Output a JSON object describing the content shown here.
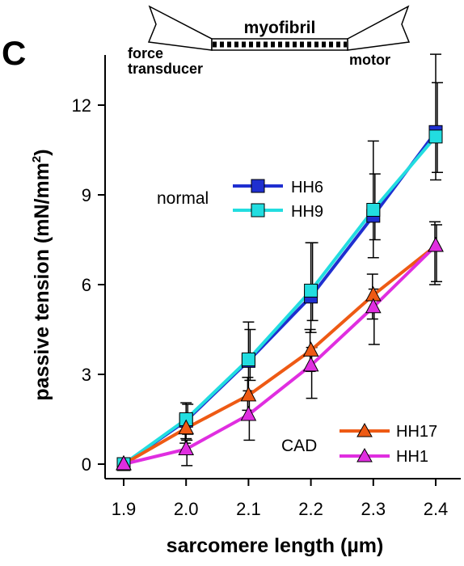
{
  "panel_letter": "C",
  "schematic": {
    "title": "myofibril",
    "left_label_line1": "force",
    "left_label_line2": "transducer",
    "right_label": "motor"
  },
  "colors": {
    "HH6": "#1f2fd0",
    "HH9": "#22dde0",
    "HH17": "#ee5a14",
    "HH1": "#e02ee0",
    "errorbar": "#000000"
  },
  "chart_data": {
    "type": "line",
    "xlabel": "sarcomere length (µm)",
    "ylabel_main": "passive tension (mN/mm",
    "ylabel_sup": "2",
    "ylabel_end": ")",
    "xlim": [
      1.9,
      2.4
    ],
    "ylim": [
      0,
      13.5
    ],
    "x_ticks": [
      1.9,
      2.0,
      2.1,
      2.2,
      2.3,
      2.4
    ],
    "x_tick_labels": [
      "1.9",
      "2.0",
      "2.1",
      "2.2",
      "2.3",
      "2.4"
    ],
    "y_ticks": [
      0,
      3,
      6,
      9,
      12
    ],
    "y_tick_labels": [
      "0",
      "3",
      "6",
      "9",
      "12"
    ],
    "grid": false,
    "legend_groups": [
      {
        "title": "normal",
        "series": [
          "HH6",
          "HH9"
        ],
        "position": "upper-left-middle"
      },
      {
        "title": "CAD",
        "series": [
          "HH17",
          "HH1"
        ],
        "position": "lower-right"
      }
    ],
    "series": [
      {
        "name": "HH6",
        "marker": "square",
        "x": [
          1.9,
          2.0,
          2.1,
          2.2,
          2.3,
          2.4
        ],
        "values": [
          0,
          1.45,
          3.45,
          5.6,
          8.3,
          11.1
        ],
        "err_up": [
          0,
          0.6,
          1.3,
          1.8,
          2.5,
          2.6
        ],
        "err_down": [
          0,
          0.6,
          1.0,
          1.2,
          1.4,
          1.6
        ]
      },
      {
        "name": "HH9",
        "marker": "square",
        "x": [
          1.9,
          2.0,
          2.1,
          2.2,
          2.3,
          2.4
        ],
        "values": [
          0,
          1.5,
          3.5,
          5.8,
          8.5,
          10.95
        ],
        "err_up": [
          0,
          0.5,
          1.0,
          1.6,
          1.2,
          1.8
        ],
        "err_down": [
          0,
          0.5,
          0.7,
          1.0,
          1.0,
          1.2
        ]
      },
      {
        "name": "HH17",
        "marker": "triangle",
        "x": [
          1.9,
          2.0,
          2.1,
          2.2,
          2.3,
          2.4
        ],
        "values": [
          0,
          1.2,
          2.3,
          3.8,
          5.65,
          7.3
        ],
        "err_up": [
          0,
          0.5,
          0.6,
          0.7,
          0.7,
          0.8
        ],
        "err_down": [
          0,
          0.5,
          0.5,
          0.7,
          0.8,
          1.3
        ]
      },
      {
        "name": "HH1",
        "marker": "triangle",
        "x": [
          1.9,
          2.0,
          2.1,
          2.2,
          2.3,
          2.4
        ],
        "values": [
          0,
          0.5,
          1.65,
          3.3,
          5.25,
          7.3
        ],
        "err_up": [
          0,
          0.3,
          0.5,
          0.6,
          0.6,
          0.7
        ],
        "err_down": [
          0,
          0.55,
          0.85,
          1.1,
          1.25,
          1.2
        ]
      }
    ]
  }
}
